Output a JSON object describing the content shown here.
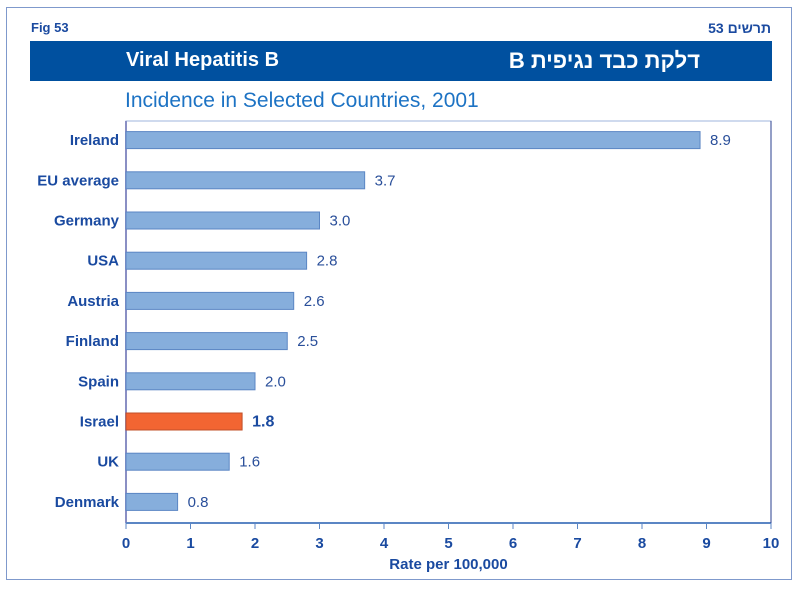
{
  "header": {
    "fig_label_en": "Fig  53",
    "fig_label_he": "תרשים 53",
    "title_en": "Viral Hepatitis B",
    "title_he": "דלקת כבד נגיפית B"
  },
  "colors": {
    "banner": "#00509f",
    "bar": "#86aedc",
    "bar_border": "#5b86c4",
    "highlight_bar": "#f26532",
    "text": "#1a4aa0"
  },
  "chart_data": {
    "type": "bar",
    "orientation": "horizontal",
    "title": "Incidence in Selected Countries, 2001",
    "xlabel": "Rate per 100,000",
    "ylabel": "",
    "xlim": [
      0,
      10
    ],
    "xticks": [
      "0",
      "1",
      "2",
      "3",
      "4",
      "5",
      "6",
      "7",
      "8",
      "9",
      "10"
    ],
    "grid": false,
    "categories": [
      "Ireland",
      "EU average",
      "Germany",
      "USA",
      "Austria",
      "Finland",
      "Spain",
      "Israel",
      "UK",
      "Denmark"
    ],
    "values": [
      8.9,
      3.7,
      3.0,
      2.8,
      2.6,
      2.5,
      2.0,
      1.8,
      1.6,
      0.8
    ],
    "value_labels": [
      "8.9",
      "3.7",
      "3.0",
      "2.8",
      "2.6",
      "2.5",
      "2.0",
      "1.8",
      "1.6",
      "0.8"
    ],
    "highlight": "Israel"
  }
}
